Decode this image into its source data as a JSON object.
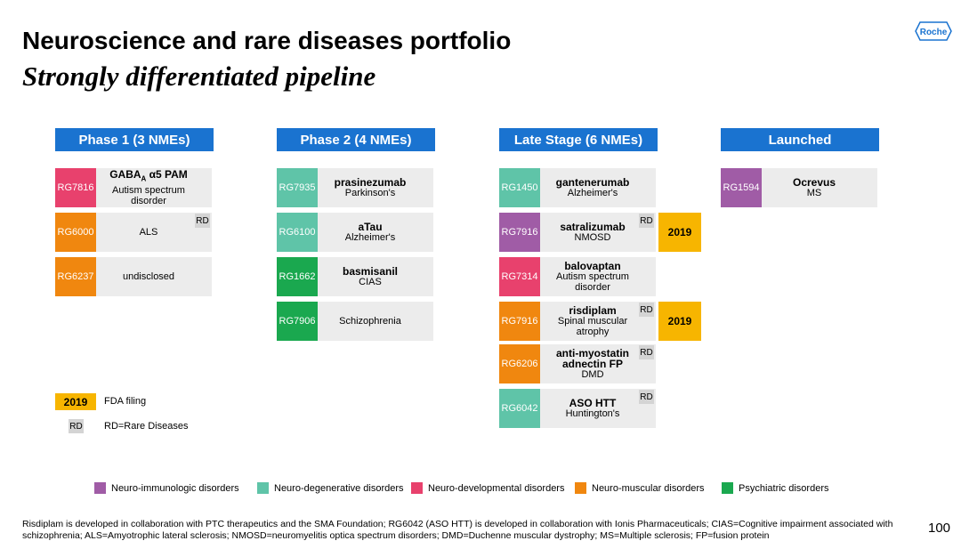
{
  "header": {
    "title": "Neuroscience and rare diseases portfolio",
    "subtitle": "Strongly differentiated pipeline",
    "logo": "Roche"
  },
  "columns": [
    {
      "title": "Phase 1 (3 NMEs)",
      "items": [
        {
          "code": "RG7816",
          "name": "GABA",
          "name_sub": "A",
          "name_after": " α5 PAM",
          "detail": "Autism spectrum disorder",
          "color": "#e8416d"
        },
        {
          "code": "RG6000",
          "detail": "ALS",
          "badge": "RD",
          "color": "#f0870f"
        },
        {
          "code": "RG6237",
          "detail": "undisclosed",
          "color": "#f0870f"
        }
      ]
    },
    {
      "title": "Phase 2 (4 NMEs)",
      "items": [
        {
          "code": "RG7935",
          "name": "prasinezumab",
          "detail": "Parkinson's",
          "color": "#5fc4a8"
        },
        {
          "code": "RG6100",
          "name": "aTau",
          "detail": "Alzheimer's",
          "color": "#5fc4a8"
        },
        {
          "code": "RG1662",
          "name": "basmisanil",
          "detail": "CIAS",
          "color": "#1aa84f"
        },
        {
          "code": "RG7906",
          "detail": "Schizophrenia",
          "color": "#1aa84f"
        }
      ]
    },
    {
      "title": "Late Stage (6 NMEs)",
      "items": [
        {
          "code": "RG1450",
          "name": "gantenerumab",
          "detail": "Alzheimer's",
          "color": "#5fc4a8"
        },
        {
          "code": "RG7916",
          "name": "satralizumab",
          "detail": "NMOSD",
          "badge": "RD",
          "filing": "2019",
          "color": "#a05ca6"
        },
        {
          "code": "RG7314",
          "name": "balovaptan",
          "detail": "Autism spectrum disorder",
          "color": "#e8416d"
        },
        {
          "code": "RG7916",
          "name": "risdiplam",
          "detail": "Spinal muscular atrophy",
          "badge": "RD",
          "filing": "2019",
          "color": "#f0870f"
        },
        {
          "code": "RG6206",
          "name": "anti-myostatin adnectin FP",
          "detail": "DMD",
          "badge": "RD",
          "color": "#f0870f"
        },
        {
          "code": "RG6042",
          "name": "ASO HTT",
          "detail": "Huntington's",
          "badge": "RD",
          "color": "#5fc4a8"
        }
      ]
    },
    {
      "title": "Launched",
      "items": [
        {
          "code": "RG1594",
          "name": "Ocrevus",
          "detail": "MS",
          "color": "#a05ca6"
        }
      ]
    }
  ],
  "key": [
    {
      "badge": "2019",
      "text": "FDA filing"
    },
    {
      "badge": "RD",
      "text": "RD=Rare Diseases"
    }
  ],
  "legend": [
    {
      "label": "Neuro-immunologic disorders",
      "color": "#a05ca6"
    },
    {
      "label": "Neuro-degenerative disorders",
      "color": "#5fc4a8"
    },
    {
      "label": "Neuro-developmental disorders",
      "color": "#e8416d"
    },
    {
      "label": "Neuro-muscular disorders",
      "color": "#f0870f"
    },
    {
      "label": "Psychiatric disorders",
      "color": "#1aa84f"
    }
  ],
  "footnote": "Risdiplam is developed in collaboration with PTC therapeutics and the SMA Foundation; RG6042 (ASO HTT) is developed in collaboration with Ionis Pharmaceuticals; CIAS=Cognitive impairment associated with schizophrenia; ALS=Amyotrophic lateral sclerosis; NMOSD=neuromyelitis optica spectrum disorders; DMD=Duchenne muscular dystrophy; MS=Multiple sclerosis; FP=fusion protein",
  "page_number": "100"
}
